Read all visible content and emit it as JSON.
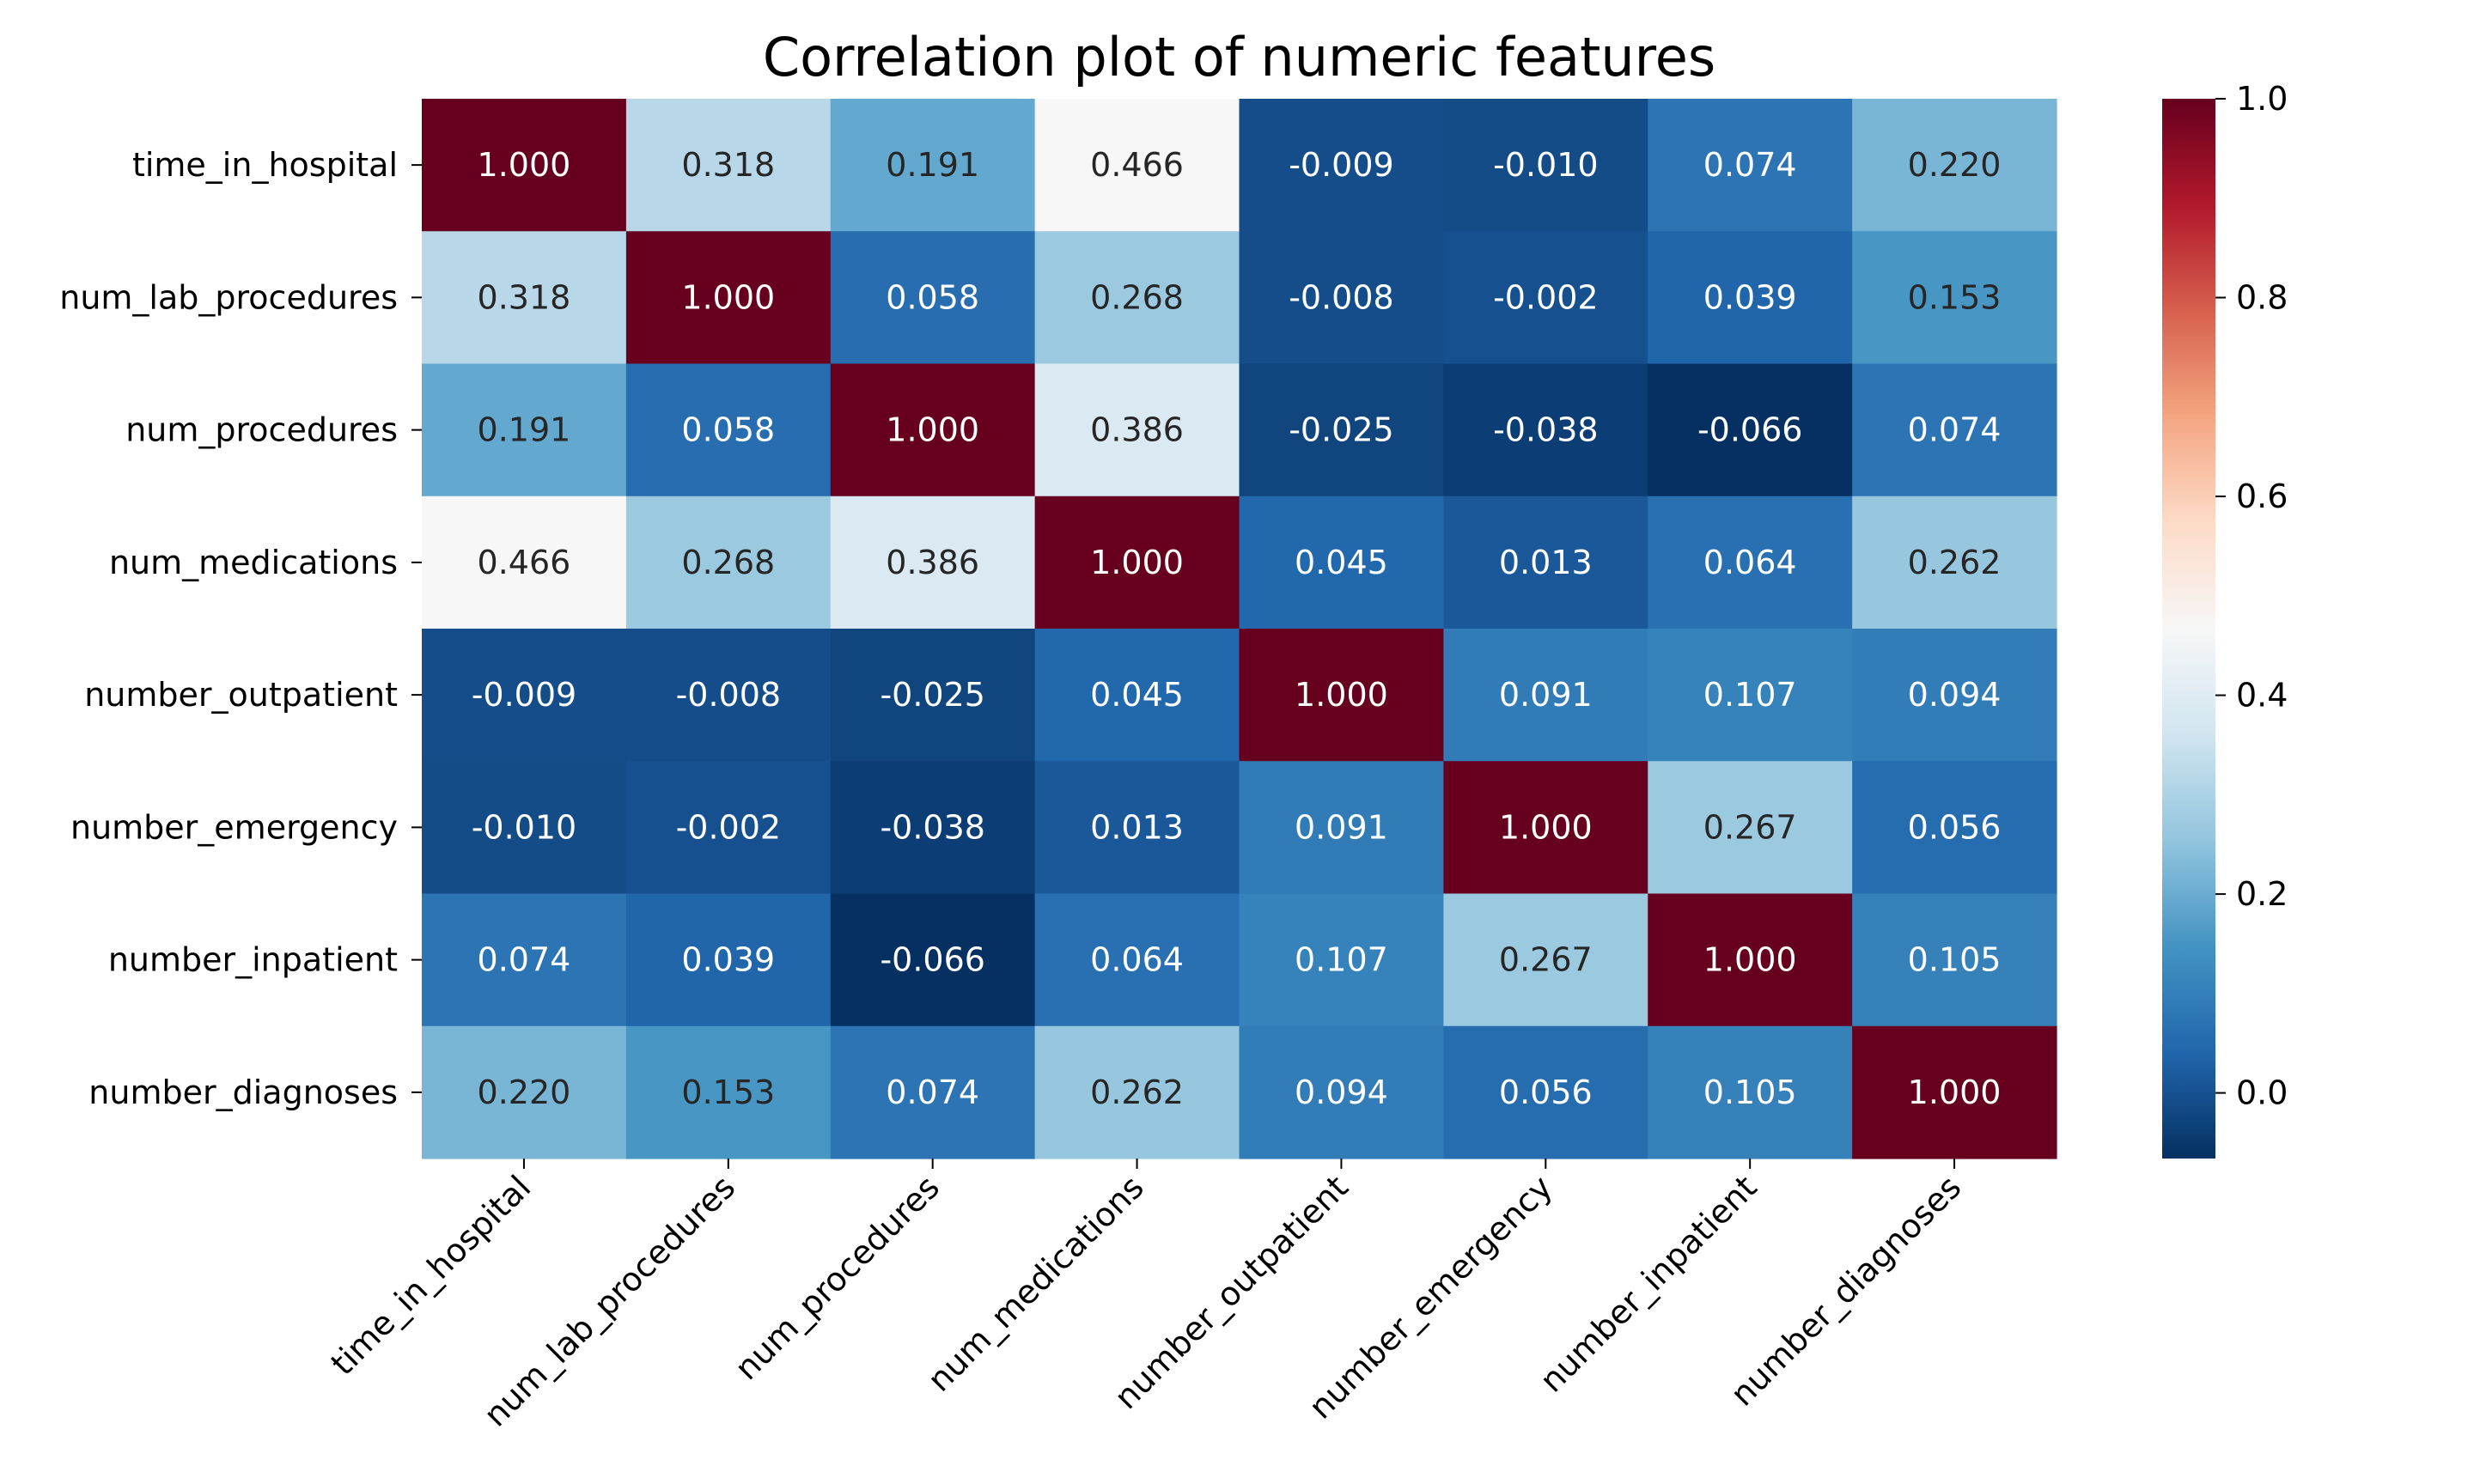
{
  "chart_data": {
    "type": "heatmap",
    "title": "Correlation plot of numeric features",
    "xlabel": "",
    "ylabel": "",
    "row_labels": [
      "time_in_hospital",
      "num_lab_procedures",
      "num_procedures",
      "num_medications",
      "number_outpatient",
      "number_emergency",
      "number_inpatient",
      "number_diagnoses"
    ],
    "col_labels": [
      "time_in_hospital",
      "num_lab_procedures",
      "num_procedures",
      "num_medications",
      "number_outpatient",
      "number_emergency",
      "number_inpatient",
      "number_diagnoses"
    ],
    "values": [
      [
        1.0,
        0.318,
        0.191,
        0.466,
        -0.009,
        -0.01,
        0.074,
        0.22
      ],
      [
        0.318,
        1.0,
        0.058,
        0.268,
        -0.008,
        -0.002,
        0.039,
        0.153
      ],
      [
        0.191,
        0.058,
        1.0,
        0.386,
        -0.025,
        -0.038,
        -0.066,
        0.074
      ],
      [
        0.466,
        0.268,
        0.386,
        1.0,
        0.045,
        0.013,
        0.064,
        0.262
      ],
      [
        -0.009,
        -0.008,
        -0.025,
        0.045,
        1.0,
        0.091,
        0.107,
        0.094
      ],
      [
        -0.01,
        -0.002,
        -0.038,
        0.013,
        0.091,
        1.0,
        0.267,
        0.056
      ],
      [
        0.074,
        0.039,
        -0.066,
        0.064,
        0.107,
        0.267,
        1.0,
        0.105
      ],
      [
        0.22,
        0.153,
        0.074,
        0.262,
        0.094,
        0.056,
        0.105,
        1.0
      ]
    ],
    "annotation_format": "3 decimals",
    "colormap": "RdBu_r",
    "color_range": [
      -0.066,
      1.0
    ],
    "colorbar": {
      "ticks": [
        "0.0",
        "0.2",
        "0.4",
        "0.6",
        "0.8",
        "1.0"
      ],
      "tick_values": [
        0.0,
        0.2,
        0.4,
        0.6,
        0.8,
        1.0
      ],
      "position": "right"
    },
    "grid": false
  }
}
